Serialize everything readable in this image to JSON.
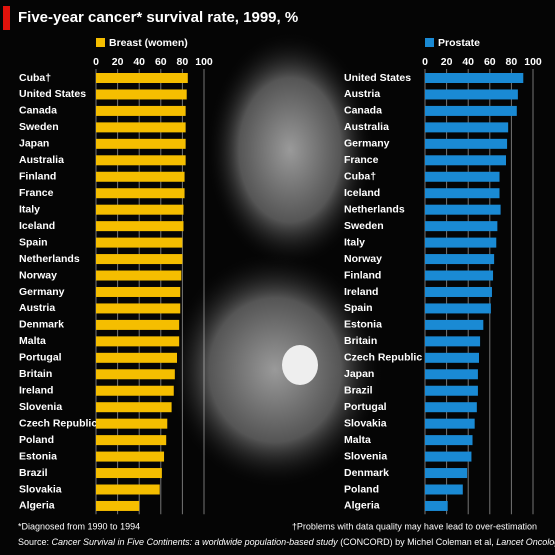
{
  "header": {
    "title": "Five-year cancer* survival rate, 1999, %"
  },
  "footer": {
    "notes": [
      "*Diagnosed from 1990 to 1994",
      "†Problems with data quality may have lead to over-estimation"
    ],
    "source": [
      "Source: ",
      "Cancer Survival in Five Continents: a worldwide population-based study",
      " (CONCORD) by Michel Coleman et al, ",
      "Lancet Oncology"
    ]
  },
  "chart_data": [
    {
      "type": "bar",
      "orientation": "horizontal",
      "series_name": "Breast (women)",
      "color": "#f5be00",
      "categories": [
        "Cuba†",
        "United States",
        "Canada",
        "Sweden",
        "Japan",
        "Australia",
        "Finland",
        "France",
        "Italy",
        "Iceland",
        "Spain",
        "Netherlands",
        "Norway",
        "Germany",
        "Austria",
        "Denmark",
        "Malta",
        "Portugal",
        "Britain",
        "Ireland",
        "Slovenia",
        "Czech Republic",
        "Poland",
        "Estonia",
        "Brazil",
        "Slovakia",
        "Algeria"
      ],
      "values": [
        85,
        84,
        83,
        83,
        83,
        83,
        82,
        82,
        81,
        81,
        80,
        80,
        79,
        78,
        78,
        77,
        77,
        75,
        73,
        72,
        70,
        66,
        65,
        63,
        61,
        59,
        40
      ],
      "xlim": [
        0,
        100
      ],
      "xticks": [
        0,
        20,
        40,
        60,
        80,
        100
      ],
      "grid": true
    },
    {
      "type": "bar",
      "orientation": "horizontal",
      "series_name": "Prostate",
      "color": "#1a8ad4",
      "categories": [
        "United States",
        "Austria",
        "Canada",
        "Australia",
        "Germany",
        "France",
        "Cuba†",
        "Iceland",
        "Netherlands",
        "Sweden",
        "Italy",
        "Norway",
        "Finland",
        "Ireland",
        "Spain",
        "Estonia",
        "Britain",
        "Czech Republic",
        "Japan",
        "Brazil",
        "Portugal",
        "Slovakia",
        "Malta",
        "Slovenia",
        "Denmark",
        "Poland",
        "Algeria"
      ],
      "values": [
        91,
        86,
        85,
        77,
        76,
        75,
        69,
        69,
        70,
        67,
        66,
        64,
        63,
        62,
        61,
        54,
        51,
        50,
        49,
        49,
        48,
        46,
        44,
        43,
        39,
        35,
        21
      ],
      "xlim": [
        0,
        100
      ],
      "xticks": [
        0,
        20,
        40,
        60,
        80,
        100
      ],
      "grid": true
    }
  ]
}
